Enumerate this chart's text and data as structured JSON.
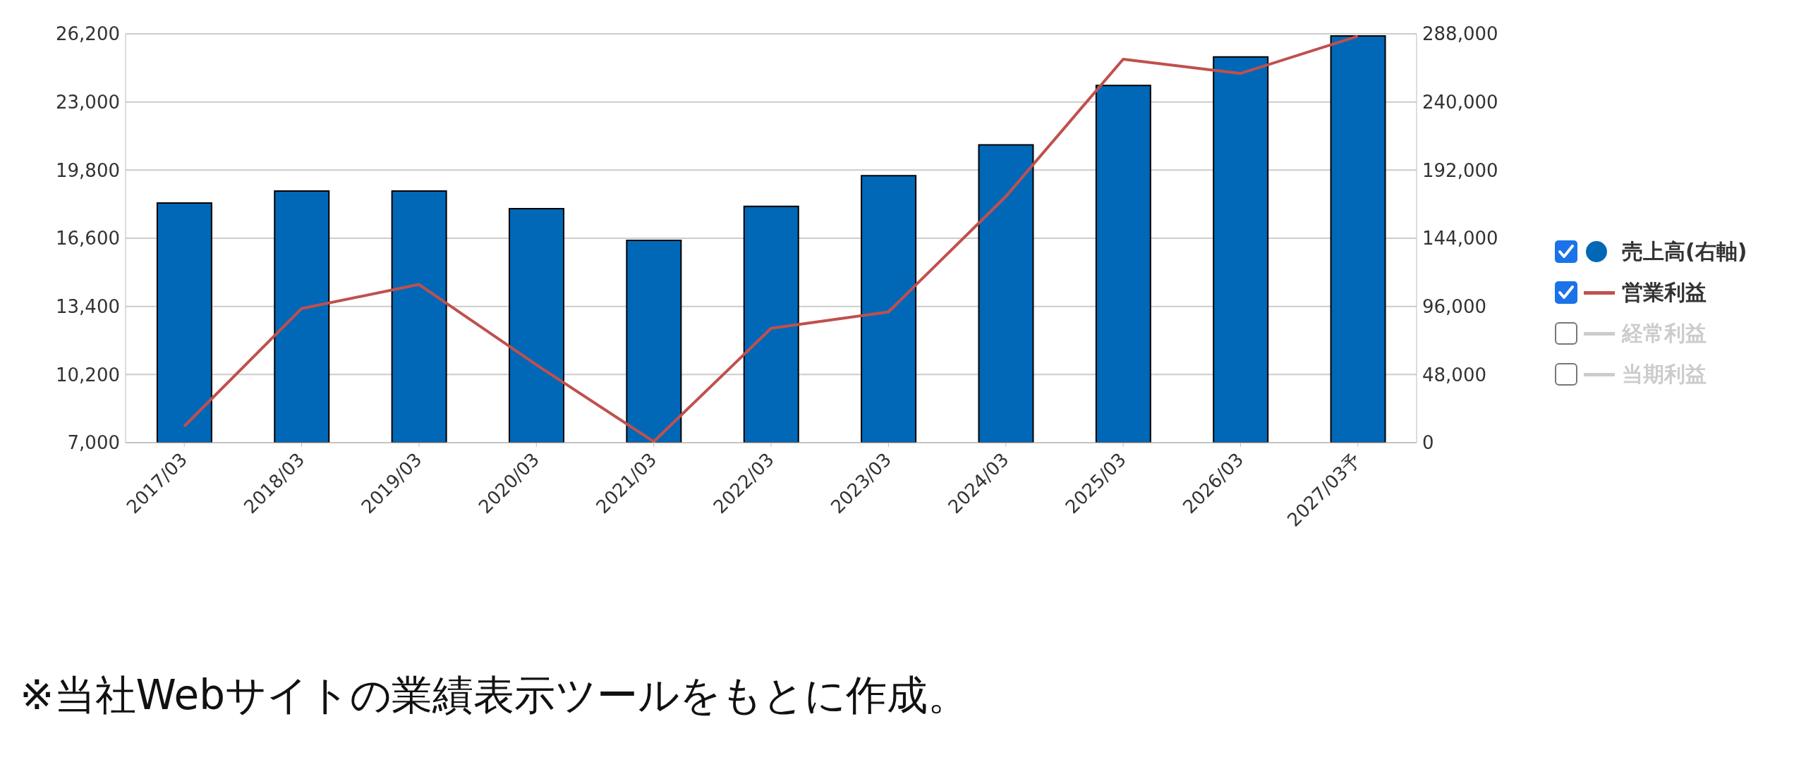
{
  "chart_data": {
    "type": "bar",
    "categories": [
      "2017/03",
      "2018/03",
      "2019/03",
      "2020/03",
      "2021/03",
      "2022/03",
      "2023/03",
      "2024/03",
      "2025/03",
      "2026/03",
      "2027/03予"
    ],
    "series": [
      {
        "name": "売上高(右軸)",
        "axis": "y2",
        "color": "#0068b7",
        "values": [
          168800,
          177300,
          177300,
          164900,
          142500,
          166500,
          188100,
          209800,
          251600,
          271700,
          286500
        ]
      },
      {
        "name": "営業利益",
        "type": "line",
        "color": "#c0504d",
        "values": [
          7770,
          13300,
          14430,
          10660,
          7050,
          12370,
          13140,
          18560,
          25010,
          24340,
          26090
        ]
      },
      {
        "name": "経常利益",
        "type": "line",
        "color": "#cccccc",
        "values": [
          null,
          null,
          null,
          null,
          null,
          null,
          null,
          null,
          null,
          null,
          null
        ]
      },
      {
        "name": "当期利益",
        "type": "line",
        "color": "#cccccc",
        "values": [
          null,
          null,
          null,
          null,
          null,
          null,
          null,
          null,
          null,
          null,
          null
        ]
      }
    ],
    "ylim": [
      7000,
      26200
    ],
    "yticks": [
      {
        "value": 7000,
        "label": "7,000"
      },
      {
        "value": 10200,
        "label": "10,200"
      },
      {
        "value": 13400,
        "label": "13,400"
      },
      {
        "value": 16600,
        "label": "16,600"
      },
      {
        "value": 19800,
        "label": "19,800"
      },
      {
        "value": 23000,
        "label": "23,000"
      },
      {
        "value": 26200,
        "label": "26,200"
      }
    ],
    "y2lim": [
      0,
      288000
    ],
    "y2ticks": [
      0,
      {
        "value": 48000,
        "label": "48,000"
      },
      {
        "value": 96000,
        "label": "96,000"
      },
      {
        "value": 144000,
        "label": "144,000"
      },
      {
        "value": 192000,
        "label": "192,000"
      },
      {
        "value": 240000,
        "label": "240,000"
      },
      {
        "value": 288000,
        "label": "288,000"
      }
    ],
    "grid": "y",
    "legend": "right",
    "marker": "none",
    "line_style": "solid",
    "annotations": [
      "※当社Webサイトの業績表示ツールをもとに作成。"
    ]
  }
}
